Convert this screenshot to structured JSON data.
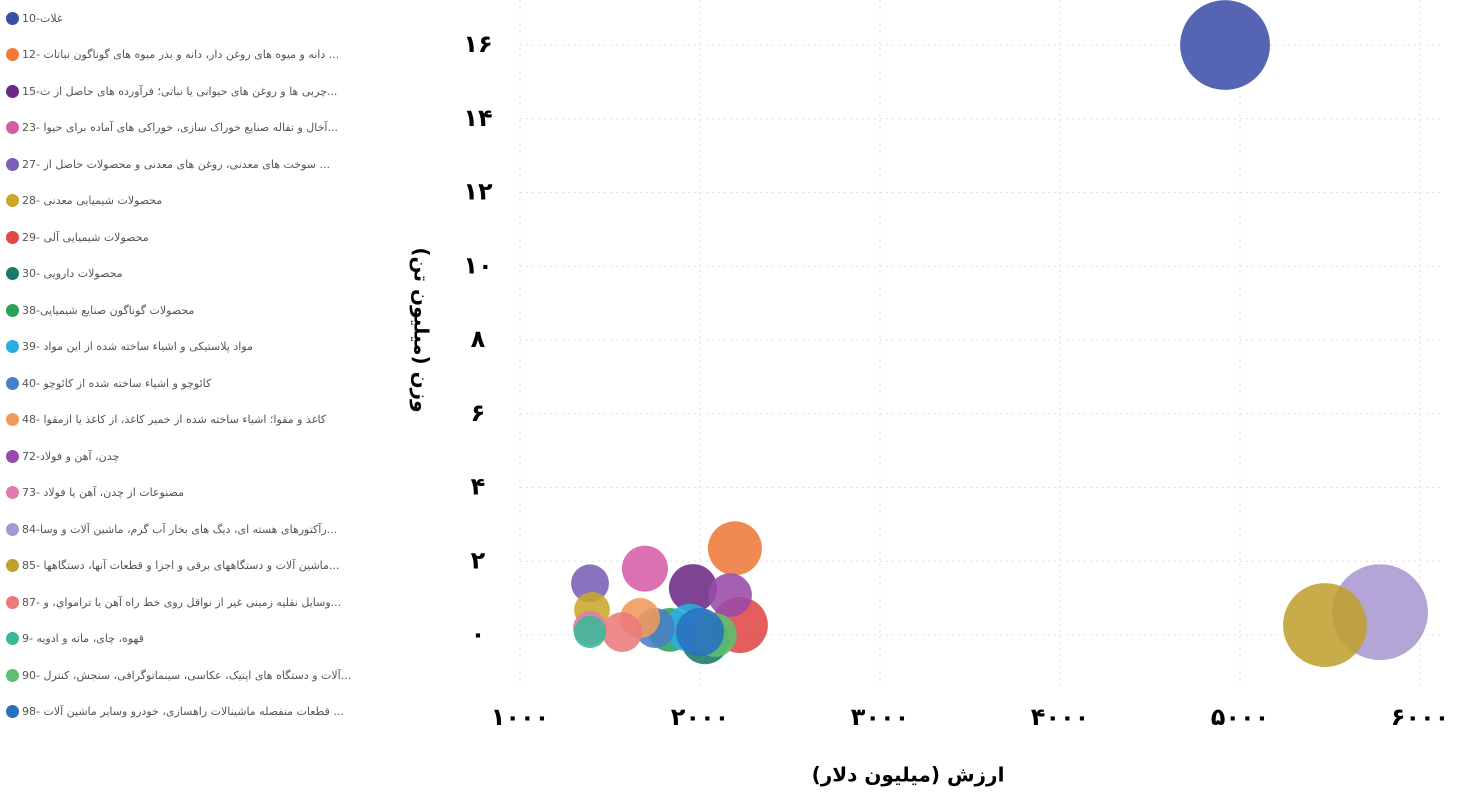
{
  "chart_data": {
    "type": "bubble",
    "x_label": "ارزش (میلیون دلار)",
    "y_label": "وزن (میلیون تن)",
    "xlim": [
      1000,
      6000
    ],
    "ylim": [
      -1.5,
      17
    ],
    "xticks": [
      {
        "value": 1000,
        "label": "۱۰۰۰"
      },
      {
        "value": 2000,
        "label": "۲۰۰۰"
      },
      {
        "value": 3000,
        "label": "۳۰۰۰"
      },
      {
        "value": 4000,
        "label": "۴۰۰۰"
      },
      {
        "value": 5000,
        "label": "۵۰۰۰"
      },
      {
        "value": 6000,
        "label": "۶۰۰۰"
      }
    ],
    "yticks": [
      {
        "value": 0,
        "label": "۰"
      },
      {
        "value": 2,
        "label": "۲"
      },
      {
        "value": 4,
        "label": "۴"
      },
      {
        "value": 6,
        "label": "۶"
      },
      {
        "value": 8,
        "label": "۸"
      },
      {
        "value": 10,
        "label": "۱۰"
      },
      {
        "value": 12,
        "label": "۱۲"
      },
      {
        "value": 14,
        "label": "۱۴"
      },
      {
        "value": 16,
        "label": "۱۶"
      }
    ],
    "grid": true,
    "legend": "left",
    "series": [
      {
        "name": "غلات-10",
        "color": "#3d4ea8",
        "x": [
          4917
        ],
        "values": [
          16
        ],
        "sizes": [
          202
        ]
      },
      {
        "name": "... دانه و میوه های روغن دار، دانه و بذر میوه های گوناگون نباتات -12",
        "color": "#ef7a3a",
        "x": [
          2194
        ],
        "values": [
          2.35
        ],
        "sizes": [
          73
        ]
      },
      {
        "name": "...چربی ها و روغن های حیوانی یا نباتی؛ فرآورده های حاصل از ت-15",
        "color": "#6b2a86",
        "x": [
          1961
        ],
        "values": [
          1.27
        ],
        "sizes": [
          58
        ]
      },
      {
        "name": "...آخال و تفاله صنایع خوراک سازی، خوراکی های آماده برای حیوا -23",
        "color": "#d65ca8",
        "x": [
          1694
        ],
        "values": [
          1.8
        ],
        "sizes": [
          53
        ]
      },
      {
        "name": "... سوخت های معدنی، روغن های معدنی و محصولات حاصل از -27",
        "color": "#7b5fb5",
        "x": [
          1389
        ],
        "values": [
          1.4
        ],
        "sizes": [
          36
        ]
      },
      {
        "name": "محصولات شیمیایی معدنی -28",
        "color": "#c9a82a",
        "x": [
          1400
        ],
        "values": [
          0.68
        ],
        "sizes": [
          32
        ]
      },
      {
        "name": "محصولات شیمیایی آلی -29",
        "color": "#e04848",
        "x": [
          2222
        ],
        "values": [
          0.27
        ],
        "sizes": [
          78
        ]
      },
      {
        "name": "محصولات دارویی -30",
        "color": "#1a7a6a",
        "x": [
          2028
        ],
        "values": [
          -0.14
        ],
        "sizes": [
          58
        ]
      },
      {
        "name": "محصولات گوناگون صنایع شیمیایی-38",
        "color": "#2aa05a",
        "x": [
          1833
        ],
        "values": [
          0.14
        ],
        "sizes": [
          48
        ]
      },
      {
        "name": "مواد پلاستیکی و اشیاء ساخته شده از این مواد -39",
        "color": "#2aaee0",
        "x": [
          1944
        ],
        "values": [
          0.19
        ],
        "sizes": [
          58
        ]
      },
      {
        "name": "کائوچو و اشیاء ساخته شده از کائوچو -40",
        "color": "#4a80c8",
        "x": [
          1750
        ],
        "values": [
          0.19
        ],
        "sizes": [
          40
        ]
      },
      {
        "name": "کاغذ و مقوا؛ اشیاء ساخته شده از خمیر کاغذ، از کاغذ یا ازمقوا -48",
        "color": "#f09a5a",
        "x": [
          1667
        ],
        "values": [
          0.46
        ],
        "sizes": [
          40
        ]
      },
      {
        "name": "چدن، آهن و فولاد-72",
        "color": "#9a4aa8",
        "x": [
          2167
        ],
        "values": [
          1.08
        ],
        "sizes": [
          48
        ]
      },
      {
        "name": "مصنوعات از چدن، آهن یا فولاد -73",
        "color": "#e07ab0",
        "x": [
          1389
        ],
        "values": [
          0.19
        ],
        "sizes": [
          29
        ]
      },
      {
        "name": "...رآکتورهای هسته ای، دیگ های بخار آب گرم، ماشین آلات و وسا-84",
        "color": "#a898d0",
        "x": [
          5778
        ],
        "values": [
          0.62
        ],
        "sizes": [
          230
        ]
      },
      {
        "name": "...ماشین آلات و دستگاههای برقی و اجزا و قطعات آنها، دستگاهها -85",
        "color": "#c0a030",
        "x": [
          5472
        ],
        "values": [
          0.27
        ],
        "sizes": [
          176
        ]
      },
      {
        "name": "...وسایل نقلیه زمینی غیر از نواقل روی خط راه آهن یا ترامواي، و -87",
        "color": "#ea7a7a",
        "x": [
          1567
        ],
        "values": [
          0.08
        ],
        "sizes": [
          40
        ]
      },
      {
        "name": "قهوه، چای، ماته و ادویه -9",
        "color": "#3ab89a",
        "x": [
          1389
        ],
        "values": [
          0.08
        ],
        "sizes": [
          26
        ]
      },
      {
        "name": "...آلات و دستگاه های اپتیک، عکاسی، سینماتوگرافی، سنجش، کنترل -90",
        "color": "#5cc070",
        "x": [
          2083
        ],
        "values": [
          0
        ],
        "sizes": [
          48
        ]
      },
      {
        "name": "... قطعات منفصله ماشینالات راهسازی، خودرو وسایر ماشین آلات -98",
        "color": "#2a70c0",
        "x": [
          2000
        ],
        "values": [
          0.08
        ],
        "sizes": [
          58
        ]
      }
    ]
  }
}
